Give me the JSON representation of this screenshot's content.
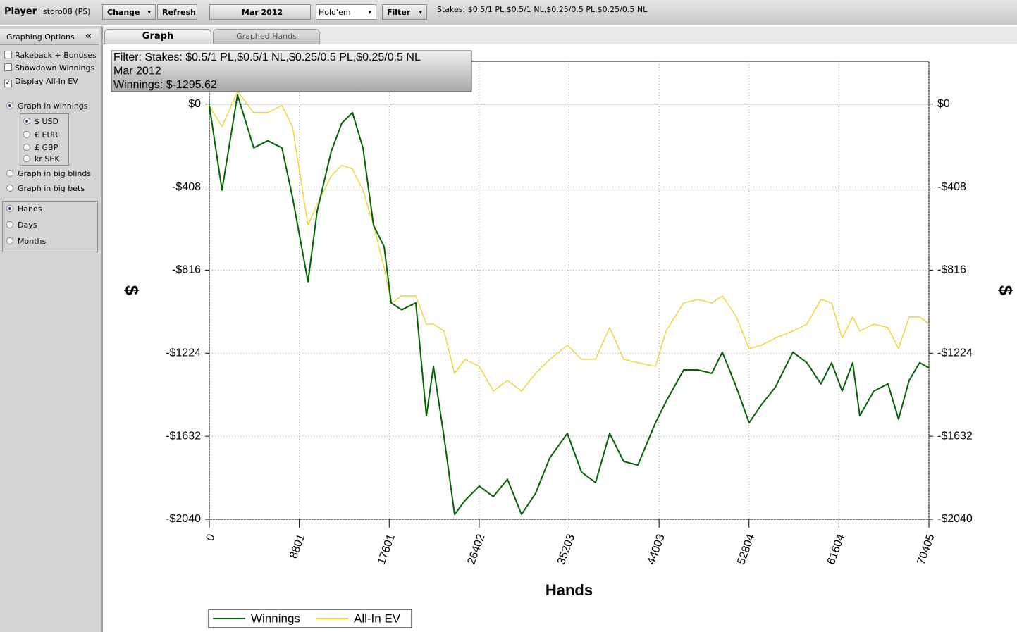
{
  "toolbar": {
    "player_label": "Player",
    "player": "storo08 (PS)",
    "change": "Change",
    "refresh": "Refresh",
    "date": "Mar 2012",
    "game": "Hold'em",
    "filter": "Filter",
    "stakes": "Stakes: $0.5/1 PL,$0.5/1 NL,$0.25/0.5 PL,$0.25/0.5 NL"
  },
  "sidebar": {
    "title": "Graphing Options",
    "collapse": "«",
    "checkboxes": [
      {
        "label": "Rakeback + Bonuses",
        "checked": false
      },
      {
        "label": "Showdown Winnings",
        "checked": false
      },
      {
        "label": "Display All-In EV",
        "checked": true
      }
    ],
    "graph_winnings": {
      "label": "Graph in winnings",
      "selected": true
    },
    "currencies": [
      {
        "label": "$ USD",
        "selected": true
      },
      {
        "label": "€ EUR",
        "selected": false
      },
      {
        "label": "£ GBP",
        "selected": false
      },
      {
        "label": "kr SEK",
        "selected": false
      }
    ],
    "graph_other": [
      {
        "label": "Graph in big blinds",
        "selected": false
      },
      {
        "label": "Graph in big bets",
        "selected": false
      }
    ],
    "x_units": [
      {
        "label": "Hands",
        "selected": true
      },
      {
        "label": "Days",
        "selected": false
      },
      {
        "label": "Months",
        "selected": false
      }
    ]
  },
  "tabs": [
    {
      "label": "Graph",
      "active": true
    },
    {
      "label": "Graphed Hands",
      "active": false
    }
  ],
  "chart_data": {
    "type": "line",
    "annotations": [
      "Filter: Stakes: $0.5/1 PL,$0.5/1 NL,$0.25/0.5 PL,$0.25/0.5 NL",
      "Mar 2012",
      "Winnings: $-1295.62"
    ],
    "x_label": "Hands",
    "y_label": "$",
    "x": [
      0,
      1241,
      2758,
      4344,
      5723,
      7102,
      8136,
      9653,
      10550,
      11928,
      12963,
      13997,
      15031,
      16066,
      17100,
      17789,
      18824,
      20203,
      21237,
      21927,
      22961,
      23995,
      25030,
      26409,
      27788,
      29167,
      30546,
      31925,
      33304,
      35028,
      36407,
      37786,
      39165,
      40544,
      41923,
      43647,
      44681,
      46405,
      47784,
      49163,
      50197,
      51576,
      52817,
      53990,
      55369,
      57093,
      58472,
      59851,
      60885,
      61919,
      62953,
      63643,
      65022,
      66401,
      67435,
      68470,
      69504,
      70405
    ],
    "series": [
      {
        "name": "Winnings",
        "color": "#006400",
        "values": [
          -7,
          -423,
          45,
          -215,
          -180,
          -215,
          -457,
          -873,
          -526,
          -232,
          -94,
          -42,
          -215,
          -596,
          -700,
          -977,
          -1011,
          -977,
          -1531,
          -1289,
          -1635,
          -2016,
          -1947,
          -1877,
          -1929,
          -1843,
          -2016,
          -1912,
          -1739,
          -1618,
          -1808,
          -1860,
          -1618,
          -1756,
          -1774,
          -1566,
          -1462,
          -1306,
          -1306,
          -1323,
          -1219,
          -1392,
          -1566,
          -1479,
          -1392,
          -1219,
          -1271,
          -1375,
          -1271,
          -1410,
          -1271,
          -1531,
          -1410,
          -1375,
          -1548,
          -1358,
          -1271,
          -1296
        ]
      },
      {
        "name": "All-In EV",
        "color": "#f0d020",
        "values": [
          -7,
          -111,
          62,
          -42,
          -42,
          -7,
          -111,
          -596,
          -492,
          -353,
          -301,
          -319,
          -423,
          -596,
          -804,
          -977,
          -942,
          -942,
          -1081,
          -1081,
          -1115,
          -1323,
          -1254,
          -1289,
          -1410,
          -1358,
          -1410,
          -1323,
          -1254,
          -1185,
          -1254,
          -1254,
          -1098,
          -1254,
          -1271,
          -1289,
          -1115,
          -977,
          -960,
          -977,
          -942,
          -1046,
          -1202,
          -1185,
          -1150,
          -1115,
          -1081,
          -960,
          -977,
          -1150,
          -1046,
          -1115,
          -1081,
          -1098,
          -1202,
          -1046,
          -1046,
          -1081
        ]
      }
    ],
    "xlim": [
      0,
      70405
    ],
    "xticks": [
      0,
      8801,
      17601,
      26402,
      35203,
      44003,
      52804,
      61604,
      70405
    ],
    "ylim": [
      -2040,
      210
    ],
    "yticks": [
      {
        "value": 0,
        "label": "$0"
      },
      {
        "value": -408,
        "label": "-$408"
      },
      {
        "value": -816,
        "label": "-$816"
      },
      {
        "value": -1224,
        "label": "-$1224"
      },
      {
        "value": -1632,
        "label": "-$1632"
      },
      {
        "value": -2040,
        "label": "-$2040"
      }
    ],
    "grid": true,
    "legend": "bottom"
  }
}
